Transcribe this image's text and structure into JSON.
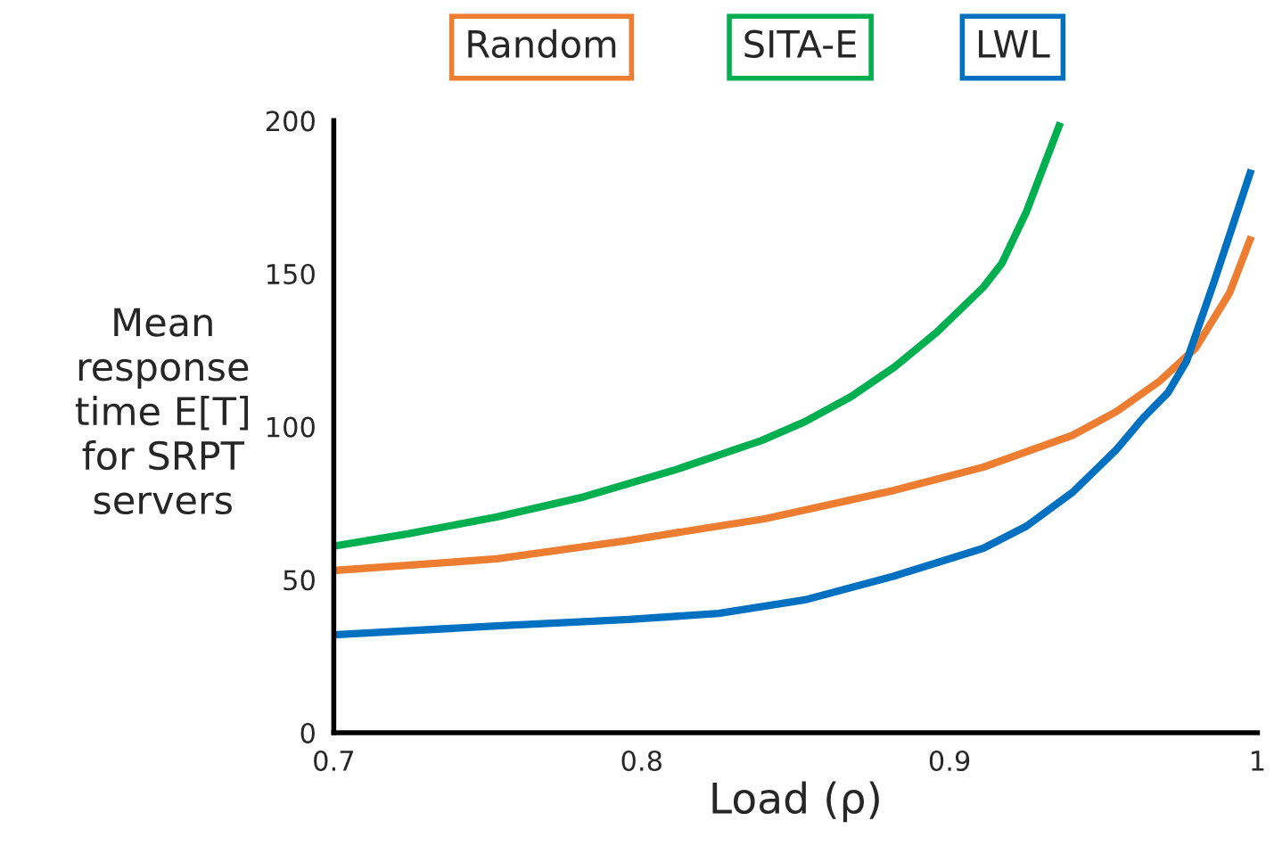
{
  "chart_data": {
    "type": "line",
    "xlabel": "Load (ρ)",
    "ylabel": "Mean\nresponse\ntime E[T]\nfor SRPT\nservers",
    "xlim": [
      0.7,
      1.0
    ],
    "xticks": [
      0.7,
      0.8,
      0.9,
      1
    ],
    "ylim": [
      0,
      200
    ],
    "yticks": [
      0,
      50,
      100,
      150,
      200
    ],
    "grid": false,
    "legend": "top",
    "marker": "none",
    "line_style": "solid",
    "series": [
      {
        "name": "Random",
        "color": "#ed7d31",
        "x": [
          0.7,
          0.753,
          0.796,
          0.84,
          0.882,
          0.911,
          0.94,
          0.954,
          0.968,
          0.98,
          0.991,
          0.998
        ],
        "values": [
          53,
          56.8,
          62.9,
          69.9,
          79.2,
          86.8,
          97.2,
          104.8,
          114.7,
          125.8,
          143.8,
          162.2
        ]
      },
      {
        "name": "SITA-E",
        "color": "#00b050",
        "x": [
          0.7,
          0.724,
          0.753,
          0.781,
          0.81,
          0.839,
          0.853,
          0.868,
          0.882,
          0.896,
          0.911,
          0.917,
          0.925,
          0.936
        ],
        "values": [
          61,
          65,
          70.5,
          77,
          85.6,
          95.5,
          101.6,
          109.8,
          119.4,
          131,
          145.6,
          153.4,
          170.3,
          199.4
        ]
      },
      {
        "name": "LWL",
        "color": "#0070c0",
        "x": [
          0.7,
          0.753,
          0.796,
          0.825,
          0.853,
          0.882,
          0.911,
          0.925,
          0.94,
          0.954,
          0.963,
          0.971,
          0.977,
          0.986,
          0.998
        ],
        "values": [
          32,
          34.9,
          37,
          39,
          43.4,
          51.2,
          60.3,
          67.5,
          78.6,
          92.3,
          103,
          111.2,
          121.4,
          147.6,
          184
        ]
      }
    ]
  }
}
